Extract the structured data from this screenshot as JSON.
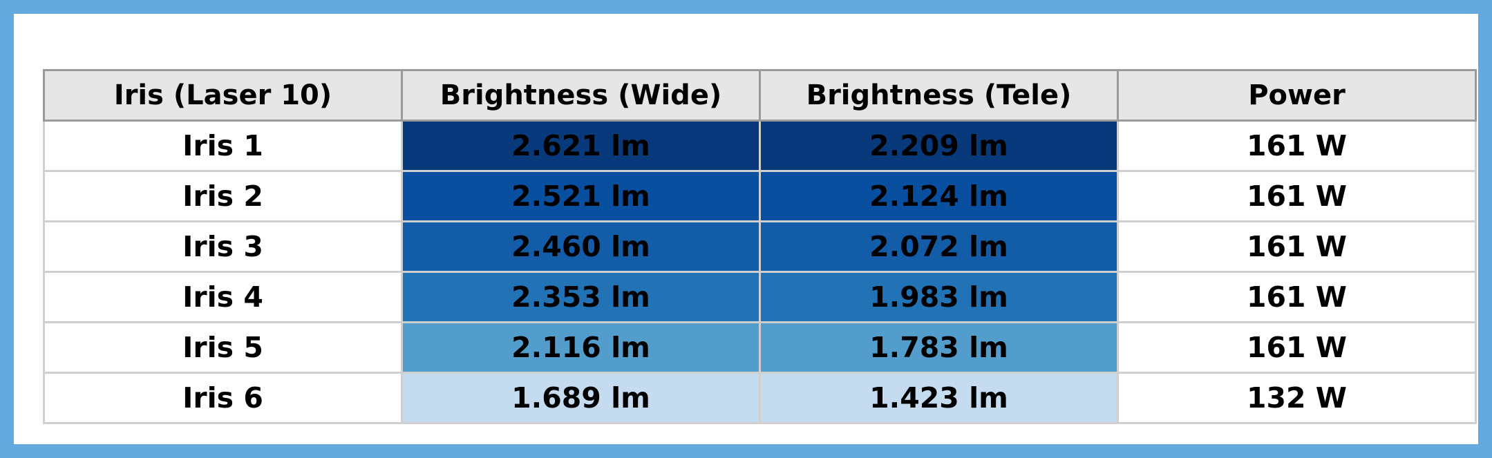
{
  "chart_data": {
    "type": "table",
    "columns": [
      "Iris (Laser 10)",
      "Brightness (Wide)",
      "Brightness (Tele)",
      "Power"
    ],
    "rows": [
      {
        "iris": "Iris 1",
        "wide": "2.621 lm",
        "tele": "2.209 lm",
        "power": "161 W",
        "wide_value": 2.621,
        "tele_value": 2.209
      },
      {
        "iris": "Iris 2",
        "wide": "2.521 lm",
        "tele": "2.124 lm",
        "power": "161 W",
        "wide_value": 2.521,
        "tele_value": 2.124
      },
      {
        "iris": "Iris 3",
        "wide": "2.460 lm",
        "tele": "2.072 lm",
        "power": "161 W",
        "wide_value": 2.46,
        "tele_value": 2.072
      },
      {
        "iris": "Iris 4",
        "wide": "2.353 lm",
        "tele": "1.983 lm",
        "power": "161 W",
        "wide_value": 2.353,
        "tele_value": 1.983
      },
      {
        "iris": "Iris 5",
        "wide": "2.116 lm",
        "tele": "1.783 lm",
        "power": "161 W",
        "wide_value": 2.116,
        "tele_value": 1.783
      },
      {
        "iris": "Iris 6",
        "wide": "1.689 lm",
        "tele": "1.423 lm",
        "power": "132 W",
        "wide_value": 1.689,
        "tele_value": 1.423
      }
    ],
    "heat_colors": {
      "wide": [
        "#08397b",
        "#084f9f",
        "#125ca8",
        "#2273b6",
        "#529dcc",
        "#c5dbef"
      ],
      "tele": [
        "#08397b",
        "#084f9f",
        "#125ca8",
        "#2273b6",
        "#529dcc",
        "#c5dbef"
      ]
    },
    "colors": {
      "frame": "#65aadf",
      "header_bg": "#e6e6e6"
    }
  }
}
